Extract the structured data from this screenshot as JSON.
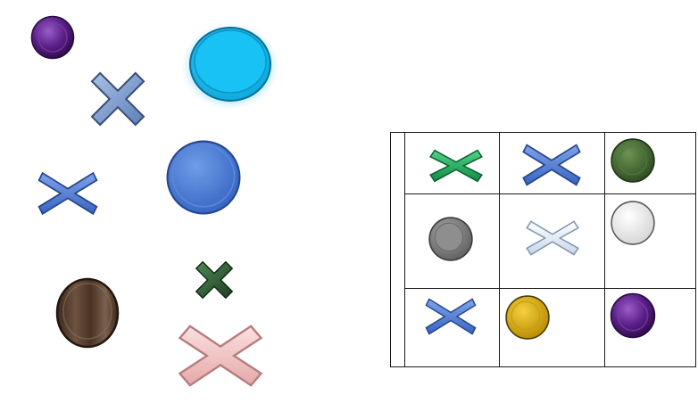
{
  "colors": {
    "grid": "#1a1a1a",
    "background": "#ffffff"
  },
  "loose_pieces": [
    {
      "kind": "disc",
      "fill": "purple",
      "color": "#5a1f86"
    },
    {
      "kind": "cross",
      "fill": "denim",
      "color": "#7d9ccd"
    },
    {
      "kind": "disc",
      "fill": "cyan-glow",
      "color": "#18bff0"
    },
    {
      "kind": "cross",
      "fill": "blue",
      "color": "#4a78d4"
    },
    {
      "kind": "disc",
      "fill": "blue",
      "color": "#4b7fd6"
    },
    {
      "kind": "disc",
      "fill": "wood",
      "color": "#5a4232"
    },
    {
      "kind": "cross",
      "fill": "green-marble",
      "color": "#2f5a33"
    },
    {
      "kind": "cross",
      "fill": "pink",
      "color": "#f1c3c3"
    }
  ],
  "board": {
    "rows": 3,
    "cols": 3,
    "cells": [
      [
        {
          "kind": "cross",
          "fill": "green",
          "color": "#1ea65a"
        },
        {
          "kind": "cross",
          "fill": "blue",
          "color": "#4a78d4"
        },
        {
          "kind": "disc",
          "fill": "dark-green",
          "color": "#3c5f2c"
        }
      ],
      [
        {
          "kind": "disc",
          "fill": "gray",
          "color": "#7a7a7a"
        },
        {
          "kind": "cross",
          "fill": "white",
          "color": "#e3ecf6"
        },
        {
          "kind": "disc",
          "fill": "white",
          "color": "#eeeeee"
        }
      ],
      [
        {
          "kind": "cross",
          "fill": "blue",
          "color": "#4a78d4"
        },
        {
          "kind": "disc",
          "fill": "gold",
          "color": "#d9a90a"
        },
        {
          "kind": "disc",
          "fill": "purple",
          "color": "#5a1f86"
        }
      ]
    ]
  }
}
